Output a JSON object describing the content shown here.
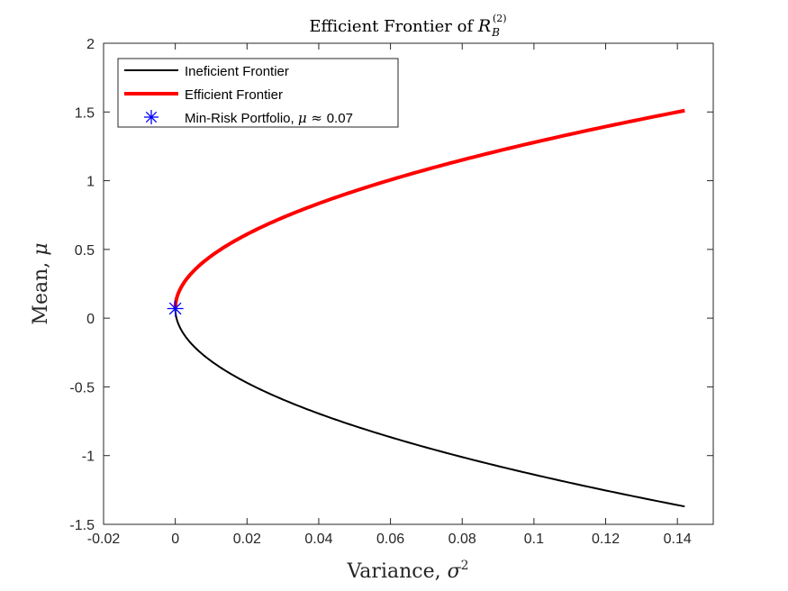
{
  "chart_data": {
    "type": "line",
    "title_prefix": "Efficient Frontier of ",
    "title_var": "R",
    "title_sub": "B",
    "title_sup": "(2)",
    "xlabel_prefix": "Variance, ",
    "xlabel_var": "σ",
    "xlabel_sup": "2",
    "ylabel_prefix": "Mean, ",
    "ylabel_var": "μ",
    "xlim": [
      -0.02,
      0.15
    ],
    "ylim": [
      -1.5,
      2
    ],
    "x_ticks": [
      -0.02,
      0,
      0.02,
      0.04,
      0.06,
      0.08,
      0.1,
      0.12,
      0.14
    ],
    "x_tick_labels": [
      "-0.02",
      "0",
      "0.02",
      "0.04",
      "0.06",
      "0.08",
      "0.1",
      "0.12",
      "0.14"
    ],
    "y_ticks": [
      -1.5,
      -1,
      -0.5,
      0,
      0.5,
      1,
      1.5,
      2
    ],
    "y_tick_labels": [
      "-1.5",
      "-1",
      "-0.5",
      "0",
      "0.5",
      "1",
      "1.5",
      "2"
    ],
    "grid": false,
    "legend_position": "top-left",
    "series": [
      {
        "name": "Ineficient Frontier",
        "color": "#000000",
        "kind": "line",
        "y_range": [
          -1.37,
          0.07
        ],
        "y_min_risk": 0.07,
        "var_min": 0.0,
        "curvature": 0.0685
      },
      {
        "name": "Efficient Frontier",
        "color": "#ff0000",
        "kind": "line",
        "y_range": [
          0.07,
          1.51
        ],
        "y_min_risk": 0.07,
        "var_min": 0.0,
        "curvature": 0.0685
      },
      {
        "name_prefix": "Min-Risk Portfolio, ",
        "name_math": "μ ≈ ",
        "name_value": "0.07",
        "color": "#0000ff",
        "kind": "marker",
        "marker": "asterisk",
        "x": 0.0,
        "y": 0.07
      }
    ]
  }
}
